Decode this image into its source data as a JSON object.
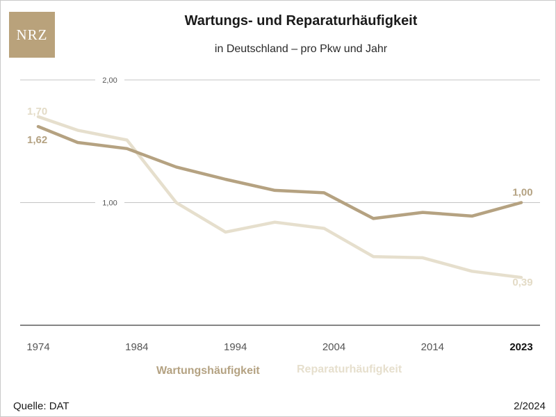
{
  "logo": {
    "text": "NRZ"
  },
  "header": {
    "title": "Wartungs- und Reparaturhäufigkeit",
    "subtitle": "in Deutschland – pro Pkw und Jahr"
  },
  "footer": {
    "source": "Quelle: DAT",
    "date": "2/2024"
  },
  "colors": {
    "wartung": "#b5a281",
    "reparatur": "#e6dfcd",
    "grid": "#c4c4c4",
    "axis": "#3a3a3a"
  },
  "chart_data": {
    "type": "line",
    "title": "Wartungs- und Reparaturhäufigkeit",
    "subtitle": "in Deutschland – pro Pkw und Jahr",
    "xlabel": "",
    "ylabel": "",
    "xlim": [
      1974,
      2023
    ],
    "ylim": [
      0,
      2
    ],
    "grid": true,
    "legend_position": "bottom",
    "x_ticks": [
      "1974",
      "1984",
      "1994",
      "2004",
      "2014",
      "2023"
    ],
    "y_ticks": [
      {
        "value": 1,
        "label": "1,00"
      },
      {
        "value": 2,
        "label": "2,00"
      }
    ],
    "series": [
      {
        "name": "Wartungshäufigkeit",
        "x": [
          1974,
          1978,
          1983,
          1988,
          1993,
          1998,
          2003,
          2008,
          2013,
          2018,
          2023
        ],
        "values": [
          1.62,
          1.49,
          1.44,
          1.29,
          1.19,
          1.1,
          1.08,
          0.87,
          0.92,
          0.89,
          1.0
        ],
        "start_label": "1,62",
        "end_label": "1,00"
      },
      {
        "name": "Reparaturhäufigkeit",
        "x": [
          1974,
          1978,
          1983,
          1988,
          1993,
          1998,
          2003,
          2008,
          2013,
          2018,
          2023
        ],
        "values": [
          1.7,
          1.59,
          1.51,
          1.0,
          0.76,
          0.84,
          0.79,
          0.56,
          0.55,
          0.44,
          0.39
        ],
        "start_label": "1,70",
        "end_label": "0,39"
      }
    ]
  }
}
